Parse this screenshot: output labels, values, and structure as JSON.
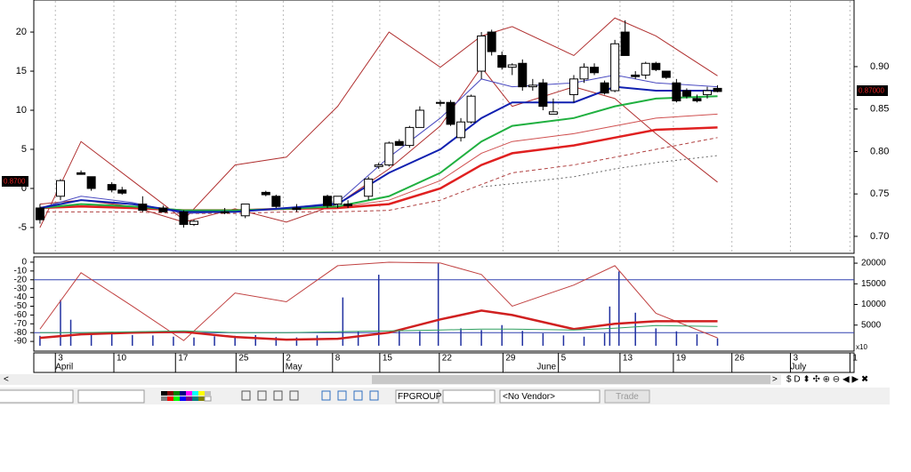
{
  "chart_data": [
    {
      "type": "candlestick",
      "xlim": [
        0.4,
        80.3
      ],
      "ylim": [
        -8.3,
        24.1
      ],
      "y2lim": [
        0.68,
        0.9785
      ],
      "yticks": [
        -5,
        0,
        5,
        10,
        15,
        20
      ],
      "y2ticks": [
        {
          "value": 0.7,
          "label": "0.70"
        },
        {
          "value": 0.75,
          "label": "0.75"
        },
        {
          "value": 0.8,
          "label": "0.80"
        },
        {
          "value": 0.85,
          "label": "0.85"
        },
        {
          "value": 0.9,
          "label": "0.90"
        }
      ],
      "xticks": [
        {
          "value": 2.5,
          "label": "3"
        },
        {
          "value": 8.2,
          "label": "10"
        },
        {
          "value": 14.2,
          "label": "17"
        },
        {
          "value": 20.1,
          "label": "25"
        },
        {
          "value": 24.7,
          "label": "2"
        },
        {
          "value": 29.5,
          "label": "8"
        },
        {
          "value": 34.1,
          "label": "15"
        },
        {
          "value": 39.9,
          "label": "22"
        },
        {
          "value": 46.1,
          "label": "29"
        },
        {
          "value": 51.5,
          "label": "5"
        },
        {
          "value": 57.5,
          "label": "13"
        },
        {
          "value": 62.7,
          "label": "19"
        },
        {
          "value": 68.4,
          "label": "26"
        },
        {
          "value": 74.1,
          "label": "3"
        },
        {
          "value": 79.9,
          "label": "1"
        }
      ],
      "month_labels": [
        {
          "value": 2.5,
          "label": "April"
        },
        {
          "value": 24.9,
          "label": "May"
        },
        {
          "value": 49.4,
          "label": "June"
        },
        {
          "value": 74.1,
          "label": "July"
        }
      ],
      "grid": true,
      "last_price_labels": [
        "0.8700",
        "0.87000"
      ],
      "candles": {
        "x": [
          1,
          3,
          5,
          6,
          8,
          9,
          11,
          13,
          15,
          16,
          19,
          21,
          23,
          24,
          26,
          29,
          30,
          31,
          33,
          34,
          35,
          36,
          37,
          38,
          40,
          41,
          42,
          43,
          44,
          45,
          46,
          47,
          48,
          49,
          50,
          51,
          53,
          54,
          55,
          56,
          57,
          58,
          59,
          60,
          61,
          62,
          63,
          64,
          65,
          66,
          67
        ],
        "open": [
          -2.5,
          -1,
          2,
          1.5,
          0.5,
          -0.2,
          -2,
          -2.5,
          -3,
          -4.6,
          -3,
          -3.5,
          -0.5,
          -1,
          -2.5,
          -1,
          -2,
          -2,
          -1,
          2.8,
          3,
          6,
          5.5,
          7.8,
          11,
          11,
          6.5,
          8.5,
          15,
          20,
          17,
          15.5,
          16,
          13,
          13.5,
          9.5,
          12,
          14,
          15.5,
          13.5,
          12.5,
          20,
          14.5,
          14.5,
          16,
          15,
          13.5,
          12.5,
          11.5,
          12,
          12.8
        ],
        "high": [
          -2,
          1.2,
          2.3,
          1.5,
          0.8,
          0.2,
          -1,
          -2.2,
          -2.8,
          -4,
          -2.5,
          -2,
          -0.3,
          -0.8,
          -2,
          -0.8,
          -1,
          -1.5,
          1.5,
          3.3,
          6,
          6.3,
          8,
          10.5,
          11.3,
          11.3,
          9,
          12,
          20,
          20.3,
          17.5,
          16,
          16.5,
          14,
          14,
          11.5,
          14.5,
          16,
          16,
          13.8,
          19,
          21.5,
          15,
          16.2,
          16.2,
          15,
          14,
          12.8,
          12,
          13,
          13.2
        ],
        "low": [
          -4.5,
          -1.5,
          1.8,
          -0.3,
          -0.5,
          -0.8,
          -3,
          -3,
          -5,
          -4.8,
          -3.3,
          -3.8,
          -1,
          -2.5,
          -3,
          -2.5,
          -2.5,
          -2.5,
          -1.5,
          2.5,
          2.8,
          5.5,
          5.2,
          7.8,
          10.5,
          8,
          6,
          8.3,
          14,
          17,
          15.2,
          14.5,
          12.5,
          12.5,
          10,
          9.5,
          11,
          13.5,
          14.5,
          12,
          12.3,
          17,
          14,
          14,
          15,
          14,
          11,
          11.5,
          11,
          11.5,
          12.3
        ],
        "close": [
          -4,
          1,
          1.8,
          0,
          -0.2,
          -0.6,
          -2.8,
          -3,
          -4.6,
          -4.2,
          -3,
          -2,
          -0.8,
          -2.3,
          -2.7,
          -2.2,
          -1,
          -2.2,
          1.2,
          3,
          5.8,
          5.5,
          7.8,
          10,
          11,
          8.2,
          8.5,
          11.8,
          19.5,
          17.5,
          15.5,
          15.8,
          13,
          13.2,
          10.5,
          9.8,
          14,
          15.5,
          14.8,
          12.2,
          18.5,
          17,
          14.3,
          16,
          15.2,
          14.2,
          11.2,
          11.8,
          11.2,
          12.5,
          12.4
        ]
      },
      "x": [
        1,
        5,
        10,
        15,
        20,
        25,
        30,
        35,
        40,
        44,
        47,
        53,
        57,
        61,
        67
      ],
      "series": [
        {
          "color": "#b03030",
          "width": 1,
          "dash": "none",
          "values": [
            -5,
            6,
            1,
            -4,
            3,
            4,
            10.5,
            20,
            15.5,
            19.5,
            20.7,
            17,
            21.8,
            19.5,
            14.4
          ]
        },
        {
          "color": "#b03030",
          "width": 1,
          "dash": "none",
          "values": [
            -2,
            -1.5,
            -2.3,
            -4.3,
            -2.6,
            -4.3,
            -2,
            2.5,
            8,
            15.5,
            10.5,
            13,
            11.5,
            7,
            0.8
          ]
        },
        {
          "color": "#b04040",
          "width": 1,
          "dash": "4 3",
          "values": [
            -3,
            -3,
            -3,
            -3.2,
            -3.2,
            -3,
            -3,
            -2.8,
            -1.5,
            0.5,
            2,
            3,
            4,
            5,
            6.5
          ]
        },
        {
          "color": "#d05050",
          "width": 1,
          "dash": "none",
          "values": [
            -2.5,
            -2.2,
            -2.4,
            -2.8,
            -2.8,
            -2.6,
            -2.4,
            -1.5,
            1,
            4.5,
            6,
            7,
            8,
            9,
            9.5
          ]
        },
        {
          "color": "#e02020",
          "width": 2.5,
          "dash": "none",
          "values": [
            -2.5,
            -2.3,
            -2.5,
            -2.8,
            -2.8,
            -2.6,
            -2.5,
            -2,
            0,
            3,
            4.5,
            5.5,
            6.5,
            7.5,
            7.8
          ]
        },
        {
          "color": "#20b040",
          "width": 2,
          "dash": "none",
          "values": [
            -2.5,
            -2,
            -2.3,
            -2.8,
            -2.8,
            -2.6,
            -2.3,
            -1,
            2,
            6,
            8,
            9,
            10.5,
            11.5,
            11.8
          ]
        },
        {
          "color": "#4a4ac0",
          "width": 1,
          "dash": "none",
          "values": [
            -2.5,
            -1,
            -1.8,
            -3.2,
            -3,
            -2.5,
            -1.8,
            4,
            9,
            14,
            13,
            13.5,
            14.5,
            13.5,
            13
          ]
        },
        {
          "color": "#1020b0",
          "width": 2,
          "dash": "none",
          "values": [
            -2.5,
            -1.5,
            -2,
            -3,
            -3,
            -2.5,
            -2,
            2,
            5,
            9,
            11,
            11,
            13,
            12.5,
            12.5
          ]
        },
        {
          "color": "#666666",
          "width": 1,
          "dash": "2 3",
          "values": [
            null,
            null,
            null,
            null,
            null,
            null,
            null,
            null,
            null,
            0.2,
            0.6,
            1.5,
            2.5,
            3.3,
            4.2
          ]
        }
      ]
    },
    {
      "type": "line",
      "xlim": [
        0.4,
        80.3
      ],
      "ylim": [
        -101,
        6
      ],
      "y2lim": [
        -1300,
        21520
      ],
      "yticks": [
        0,
        -10,
        -20,
        -30,
        -40,
        -50,
        -60,
        -70,
        -80,
        -90
      ],
      "y2ticks": [
        5000,
        10000,
        15000,
        20000
      ],
      "y2_label": "x10",
      "hlines": [
        -20,
        -80
      ],
      "x": [
        1,
        5,
        10,
        15,
        20,
        25,
        30,
        35,
        40,
        44,
        47,
        53,
        57,
        61,
        67
      ],
      "series": [
        {
          "color": "#c04040",
          "width": 1,
          "values": [
            -76,
            -12,
            -50,
            -89,
            -35,
            -45,
            -4,
            0,
            -1,
            -14,
            -50,
            -26,
            -4,
            -58,
            -86
          ]
        },
        {
          "color": "#d02020",
          "width": 2.5,
          "values": [
            -86,
            -82,
            -80,
            -79,
            -85,
            -88,
            -87,
            -80,
            -65,
            -55,
            -60,
            -76,
            -70,
            -67,
            -67
          ]
        },
        {
          "color": "#30a060",
          "width": 1,
          "values": [
            -80,
            -80,
            -79,
            -78,
            -80,
            -80,
            -79,
            -78,
            -77,
            -76,
            -76,
            -77,
            -75,
            -72,
            -73
          ]
        }
      ],
      "bars": {
        "color": "#2030a0",
        "axis": "y2",
        "x": [
          1,
          3,
          4,
          6,
          8,
          10,
          12,
          14,
          16,
          18,
          20,
          22,
          24,
          26,
          28,
          30.5,
          32,
          34,
          36,
          38,
          39.8,
          42,
          44,
          46,
          48,
          50,
          52,
          54,
          56,
          56.5,
          57.4,
          59,
          61,
          63,
          65,
          67
        ],
        "values": [
          2400,
          11100,
          6300,
          2800,
          3000,
          2600,
          2500,
          2200,
          2000,
          2300,
          2400,
          2600,
          2100,
          2000,
          2500,
          11700,
          3500,
          17200,
          4000,
          3500,
          20000,
          4200,
          3800,
          5000,
          3600,
          3000,
          2500,
          2200,
          3000,
          9500,
          18000,
          8000,
          4200,
          3500,
          2800,
          1800
        ]
      }
    }
  ],
  "toolbar": {
    "symbol": "FPGROUP",
    "vendor": "<No Vendor>",
    "button": "Trade"
  }
}
